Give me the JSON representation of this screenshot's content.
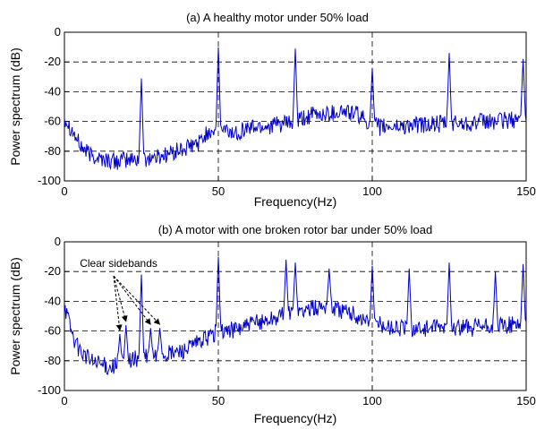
{
  "chart_data": [
    {
      "type": "line",
      "title": "(a) A healthy motor under 50% load",
      "xlabel": "Frequency(Hz)",
      "ylabel": "Power spectrum (dB)",
      "xlim": [
        0,
        150
      ],
      "ylim": [
        -100,
        0
      ],
      "xticks": [
        0,
        50,
        100,
        150
      ],
      "yticks": [
        0,
        -20,
        -40,
        -60,
        -80,
        -100
      ],
      "grid": "dashed",
      "series_color": "#0000cc",
      "baseline": [
        {
          "x": 0,
          "y": -57
        },
        {
          "x": 2,
          "y": -64
        },
        {
          "x": 5,
          "y": -76
        },
        {
          "x": 8,
          "y": -82
        },
        {
          "x": 12,
          "y": -85
        },
        {
          "x": 16,
          "y": -87
        },
        {
          "x": 20,
          "y": -86
        },
        {
          "x": 25,
          "y": -85
        },
        {
          "x": 30,
          "y": -84
        },
        {
          "x": 35,
          "y": -81
        },
        {
          "x": 40,
          "y": -78
        },
        {
          "x": 44,
          "y": -74
        },
        {
          "x": 47,
          "y": -66
        },
        {
          "x": 52,
          "y": -66
        },
        {
          "x": 55,
          "y": -68
        },
        {
          "x": 60,
          "y": -64
        },
        {
          "x": 65,
          "y": -63
        },
        {
          "x": 70,
          "y": -62
        },
        {
          "x": 75,
          "y": -61
        },
        {
          "x": 80,
          "y": -56
        },
        {
          "x": 85,
          "y": -55
        },
        {
          "x": 90,
          "y": -53
        },
        {
          "x": 95,
          "y": -55
        },
        {
          "x": 98,
          "y": -60
        },
        {
          "x": 102,
          "y": -64
        },
        {
          "x": 110,
          "y": -63
        },
        {
          "x": 120,
          "y": -62
        },
        {
          "x": 130,
          "y": -61
        },
        {
          "x": 140,
          "y": -60
        },
        {
          "x": 150,
          "y": -58
        }
      ],
      "noise_amplitude": 6,
      "peaks": [
        {
          "x": 25,
          "y": -31
        },
        {
          "x": 50,
          "y": -10
        },
        {
          "x": 75,
          "y": -11
        },
        {
          "x": 100,
          "y": -24
        },
        {
          "x": 125,
          "y": -14
        },
        {
          "x": 149,
          "y": -18
        }
      ]
    },
    {
      "type": "line",
      "title": "(b) A motor with one broken rotor bar under 50% load",
      "xlabel": "Frequency(Hz)",
      "ylabel": "Power spectrum (dB)",
      "xlim": [
        0,
        150
      ],
      "ylim": [
        -100,
        0
      ],
      "xticks": [
        0,
        50,
        100,
        150
      ],
      "yticks": [
        0,
        -20,
        -40,
        -60,
        -80,
        -100
      ],
      "grid": "dashed",
      "series_color": "#0000cc",
      "annotation": {
        "text": "Clear sidebands",
        "x": 5,
        "y": -17
      },
      "annotation_targets": [
        {
          "x": 18,
          "y": -62
        },
        {
          "x": 20,
          "y": -56
        },
        {
          "x": 28,
          "y": -58
        },
        {
          "x": 31,
          "y": -58
        }
      ],
      "baseline": [
        {
          "x": 0,
          "y": -42
        },
        {
          "x": 2,
          "y": -58
        },
        {
          "x": 4,
          "y": -70
        },
        {
          "x": 7,
          "y": -77
        },
        {
          "x": 10,
          "y": -82
        },
        {
          "x": 15,
          "y": -84
        },
        {
          "x": 20,
          "y": -80
        },
        {
          "x": 25,
          "y": -78
        },
        {
          "x": 30,
          "y": -77
        },
        {
          "x": 35,
          "y": -75
        },
        {
          "x": 40,
          "y": -72
        },
        {
          "x": 45,
          "y": -66
        },
        {
          "x": 50,
          "y": -60
        },
        {
          "x": 55,
          "y": -59
        },
        {
          "x": 60,
          "y": -56
        },
        {
          "x": 65,
          "y": -53
        },
        {
          "x": 70,
          "y": -50
        },
        {
          "x": 75,
          "y": -47
        },
        {
          "x": 80,
          "y": -45
        },
        {
          "x": 85,
          "y": -43
        },
        {
          "x": 90,
          "y": -46
        },
        {
          "x": 95,
          "y": -50
        },
        {
          "x": 100,
          "y": -55
        },
        {
          "x": 105,
          "y": -57
        },
        {
          "x": 110,
          "y": -58
        },
        {
          "x": 120,
          "y": -58
        },
        {
          "x": 130,
          "y": -58
        },
        {
          "x": 140,
          "y": -57
        },
        {
          "x": 150,
          "y": -55
        }
      ],
      "noise_amplitude": 6,
      "peaks": [
        {
          "x": 18,
          "y": -62
        },
        {
          "x": 20,
          "y": -56
        },
        {
          "x": 25,
          "y": -22
        },
        {
          "x": 28,
          "y": -58
        },
        {
          "x": 31,
          "y": -58
        },
        {
          "x": 50,
          "y": -10
        },
        {
          "x": 72,
          "y": -12
        },
        {
          "x": 75,
          "y": -14
        },
        {
          "x": 86,
          "y": -18
        },
        {
          "x": 100,
          "y": -16
        },
        {
          "x": 112,
          "y": -18
        },
        {
          "x": 125,
          "y": -14
        },
        {
          "x": 140,
          "y": -20
        },
        {
          "x": 149,
          "y": -15
        }
      ]
    }
  ]
}
